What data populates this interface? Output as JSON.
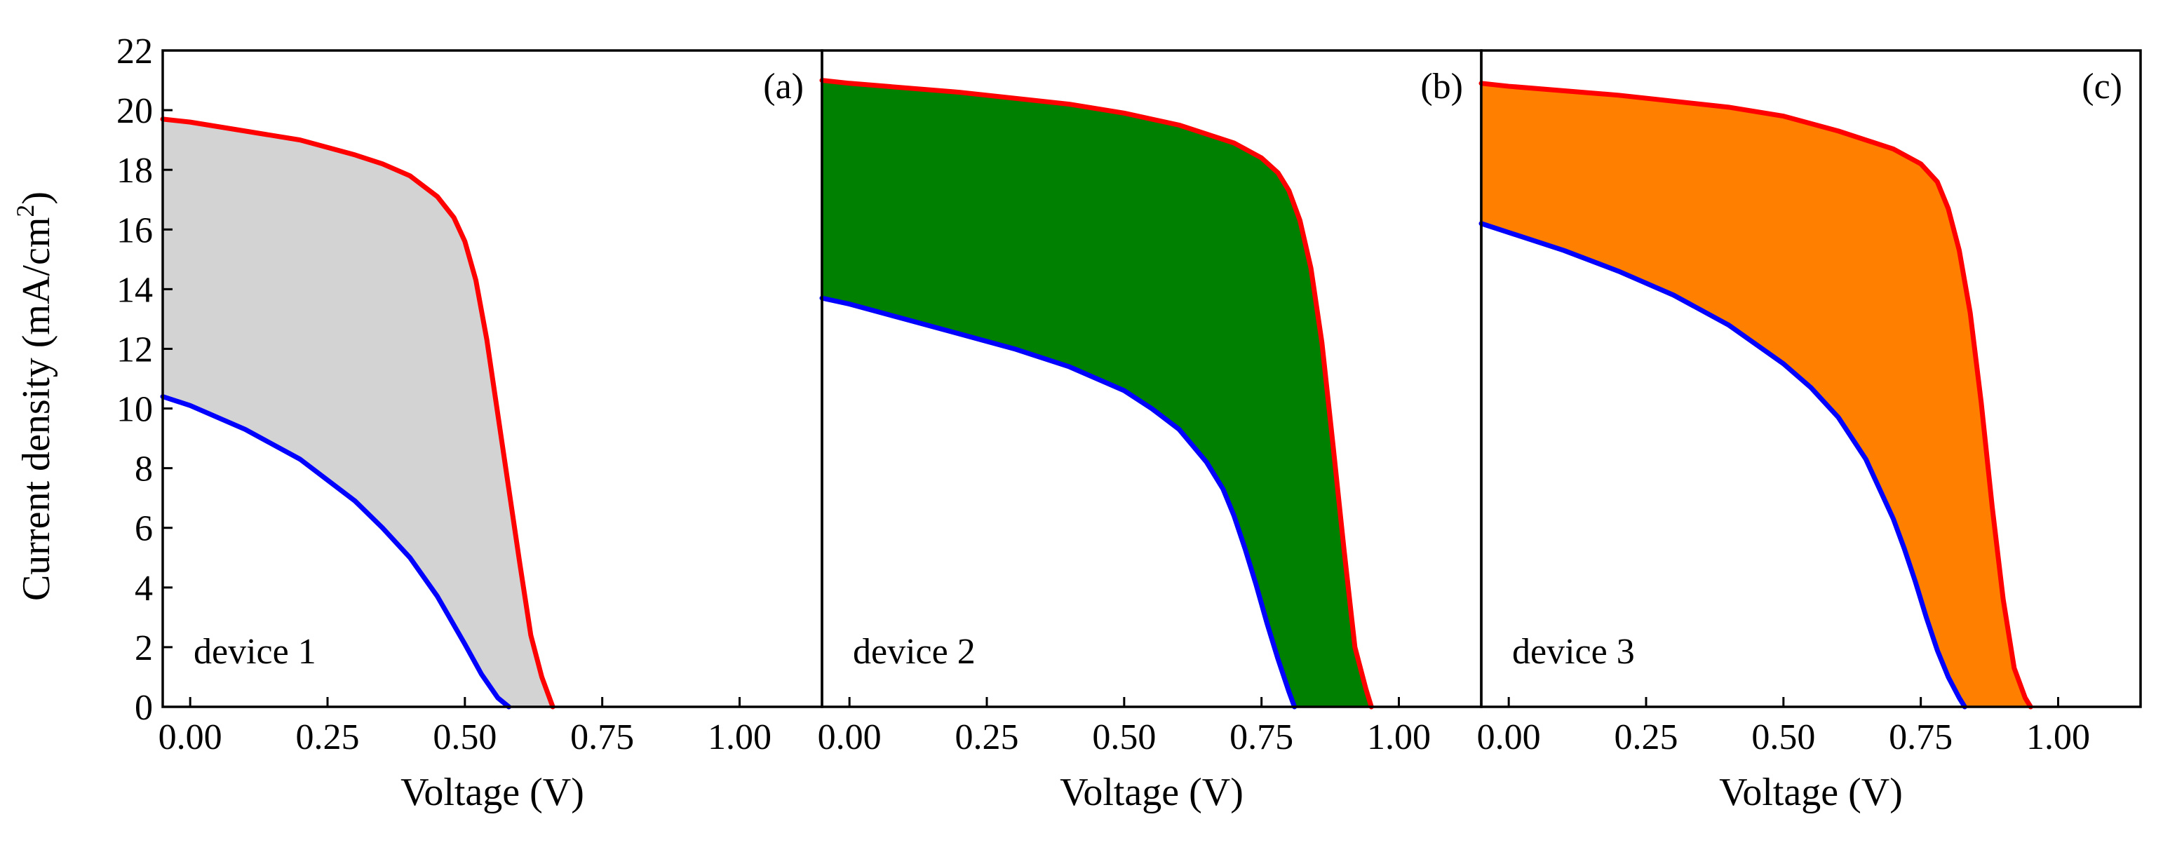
{
  "figure": {
    "ylabel": "Current density (mA/cm",
    "ylabel_sup": "2",
    "ylabel_close": ")",
    "ylim": [
      0,
      22
    ],
    "yticks": [
      0,
      2,
      4,
      6,
      8,
      10,
      12,
      14,
      16,
      18,
      20,
      22
    ],
    "ytick_labels": [
      "0",
      "2",
      "4",
      "6",
      "8",
      "10",
      "12",
      "14",
      "16",
      "18",
      "20",
      "22"
    ]
  },
  "chart_data": [
    {
      "type": "area",
      "panel_label": "(a)",
      "device_label": "device 1",
      "xlabel": "Voltage (V)",
      "xlim": [
        -0.05,
        1.15
      ],
      "ylim": [
        0,
        22
      ],
      "xticks": [
        0,
        0.25,
        0.5,
        0.75,
        1.0
      ],
      "xtick_labels": [
        "0.00",
        "0.25",
        "0.50",
        "0.75",
        "1.00"
      ],
      "fill_color": "#d3d3d3",
      "series": [
        {
          "name": "upper",
          "color": "#ff0000",
          "x": [
            -0.05,
            0.0,
            0.1,
            0.2,
            0.3,
            0.35,
            0.4,
            0.45,
            0.48,
            0.5,
            0.52,
            0.54,
            0.56,
            0.58,
            0.6,
            0.62,
            0.64,
            0.66
          ],
          "y": [
            19.7,
            19.6,
            19.3,
            19.0,
            18.5,
            18.2,
            17.8,
            17.1,
            16.4,
            15.6,
            14.3,
            12.3,
            9.8,
            7.3,
            4.8,
            2.4,
            1.0,
            0.0
          ]
        },
        {
          "name": "lower",
          "color": "#0000ff",
          "x": [
            -0.05,
            0.0,
            0.1,
            0.2,
            0.3,
            0.35,
            0.4,
            0.45,
            0.5,
            0.53,
            0.56,
            0.58
          ],
          "y": [
            10.4,
            10.1,
            9.3,
            8.3,
            6.9,
            6.0,
            5.0,
            3.7,
            2.1,
            1.1,
            0.3,
            0.0
          ]
        }
      ]
    },
    {
      "type": "area",
      "panel_label": "(b)",
      "device_label": "device 2",
      "xlabel": "Voltage (V)",
      "xlim": [
        -0.05,
        1.15
      ],
      "ylim": [
        0,
        22
      ],
      "xticks": [
        0,
        0.25,
        0.5,
        0.75,
        1.0
      ],
      "xtick_labels": [
        "0.00",
        "0.25",
        "0.50",
        "0.75",
        "1.00"
      ],
      "fill_color": "#008000",
      "series": [
        {
          "name": "upper",
          "color": "#ff0000",
          "x": [
            -0.05,
            0.0,
            0.2,
            0.4,
            0.5,
            0.6,
            0.7,
            0.75,
            0.78,
            0.8,
            0.82,
            0.84,
            0.86,
            0.88,
            0.9,
            0.92,
            0.94,
            0.95
          ],
          "y": [
            21.0,
            20.9,
            20.6,
            20.2,
            19.9,
            19.5,
            18.9,
            18.4,
            17.9,
            17.3,
            16.3,
            14.7,
            12.2,
            8.8,
            5.3,
            2.0,
            0.6,
            0.0
          ]
        },
        {
          "name": "lower",
          "color": "#0000ff",
          "x": [
            -0.05,
            0.0,
            0.1,
            0.2,
            0.3,
            0.4,
            0.5,
            0.55,
            0.6,
            0.65,
            0.68,
            0.7,
            0.72,
            0.74,
            0.76,
            0.78,
            0.8,
            0.81
          ],
          "y": [
            13.7,
            13.5,
            13.0,
            12.5,
            12.0,
            11.4,
            10.6,
            10.0,
            9.3,
            8.2,
            7.3,
            6.4,
            5.3,
            4.1,
            2.8,
            1.6,
            0.5,
            0.0
          ]
        }
      ]
    },
    {
      "type": "area",
      "panel_label": "(c)",
      "device_label": "device 3",
      "xlabel": "Voltage (V)",
      "xlim": [
        -0.05,
        1.15
      ],
      "ylim": [
        0,
        22
      ],
      "xticks": [
        0,
        0.25,
        0.5,
        0.75,
        1.0
      ],
      "xtick_labels": [
        "0.00",
        "0.25",
        "0.50",
        "0.75",
        "1.00"
      ],
      "fill_color": "#ff8000",
      "series": [
        {
          "name": "upper",
          "color": "#ff0000",
          "x": [
            -0.05,
            0.0,
            0.2,
            0.4,
            0.5,
            0.6,
            0.7,
            0.75,
            0.78,
            0.8,
            0.82,
            0.84,
            0.86,
            0.88,
            0.9,
            0.92,
            0.94,
            0.95
          ],
          "y": [
            20.9,
            20.8,
            20.5,
            20.1,
            19.8,
            19.3,
            18.7,
            18.2,
            17.6,
            16.7,
            15.3,
            13.2,
            10.2,
            6.7,
            3.6,
            1.3,
            0.3,
            0.0
          ]
        },
        {
          "name": "lower",
          "color": "#0000ff",
          "x": [
            -0.05,
            0.0,
            0.1,
            0.2,
            0.3,
            0.4,
            0.5,
            0.55,
            0.6,
            0.65,
            0.7,
            0.72,
            0.74,
            0.76,
            0.78,
            0.8,
            0.82,
            0.83
          ],
          "y": [
            16.2,
            15.9,
            15.3,
            14.6,
            13.8,
            12.8,
            11.5,
            10.7,
            9.7,
            8.3,
            6.3,
            5.3,
            4.2,
            3.0,
            1.9,
            1.0,
            0.3,
            0.0
          ]
        }
      ]
    }
  ]
}
